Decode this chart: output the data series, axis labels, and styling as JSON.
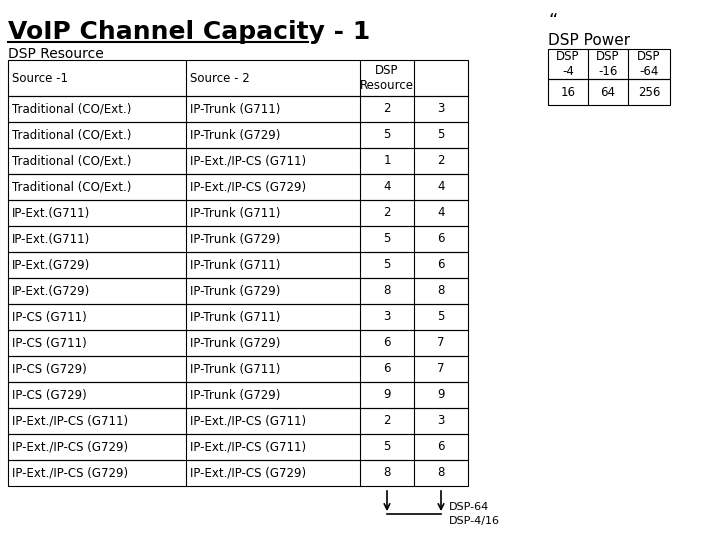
{
  "title": "VoIP Channel Capacity - 1",
  "subtitle": "DSP Resource",
  "quote_mark": "“",
  "main_table_rows": [
    [
      "Traditional (CO/Ext.)",
      "IP-Trunk (G711)",
      "2",
      "3"
    ],
    [
      "Traditional (CO/Ext.)",
      "IP-Trunk (G729)",
      "5",
      "5"
    ],
    [
      "Traditional (CO/Ext.)",
      "IP-Ext./IP-CS (G711)",
      "1",
      "2"
    ],
    [
      "Traditional (CO/Ext.)",
      "IP-Ext./IP-CS (G729)",
      "4",
      "4"
    ],
    [
      "IP-Ext.(G711)",
      "IP-Trunk (G711)",
      "2",
      "4"
    ],
    [
      "IP-Ext.(G711)",
      "IP-Trunk (G729)",
      "5",
      "6"
    ],
    [
      "IP-Ext.(G729)",
      "IP-Trunk (G711)",
      "5",
      "6"
    ],
    [
      "IP-Ext.(G729)",
      "IP-Trunk (G729)",
      "8",
      "8"
    ],
    [
      "IP-CS (G711)",
      "IP-Trunk (G711)",
      "3",
      "5"
    ],
    [
      "IP-CS (G711)",
      "IP-Trunk (G729)",
      "6",
      "7"
    ],
    [
      "IP-CS (G729)",
      "IP-Trunk (G711)",
      "6",
      "7"
    ],
    [
      "IP-CS (G729)",
      "IP-Trunk (G729)",
      "9",
      "9"
    ],
    [
      "IP-Ext./IP-CS (G711)",
      "IP-Ext./IP-CS (G711)",
      "2",
      "3"
    ],
    [
      "IP-Ext./IP-CS (G729)",
      "IP-Ext./IP-CS (G711)",
      "5",
      "6"
    ],
    [
      "IP-Ext./IP-CS (G729)",
      "IP-Ext./IP-CS (G729)",
      "8",
      "8"
    ]
  ],
  "dsp_power_title": "DSP Power",
  "dsp_power_headers": [
    "DSP\n-4",
    "DSP\n-16",
    "DSP\n-64"
  ],
  "dsp_power_values": [
    "16",
    "64",
    "256"
  ],
  "arrow_label_1": "DSP-64",
  "arrow_label_2": "DSP-4/16",
  "background_color": "#ffffff",
  "text_color": "#000000"
}
